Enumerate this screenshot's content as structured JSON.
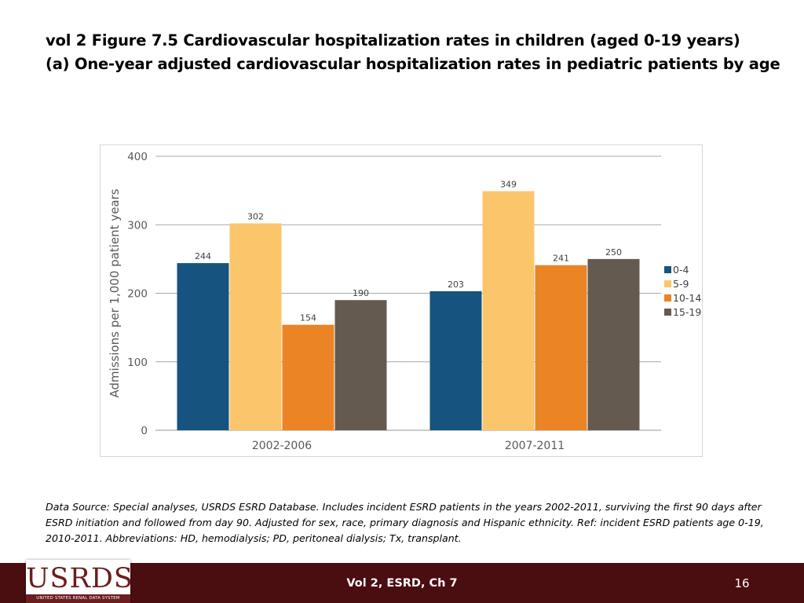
{
  "title": {
    "line1": "vol 2 Figure 7.5 Cardiovascular hospitalization rates in children (aged 0-19 years)",
    "line2": "(a) One-year adjusted cardiovascular hospitalization rates in pediatric patients by age"
  },
  "chart_data": {
    "type": "bar",
    "title": "",
    "xlabel": "",
    "ylabel": "Admissions per 1,000 patient years",
    "ylim": [
      0,
      400
    ],
    "yticks": [
      0,
      100,
      200,
      300,
      400
    ],
    "grid": true,
    "legend_position": "right",
    "categories": [
      "2002-2006",
      "2007-2011"
    ],
    "series": [
      {
        "name": "0-4",
        "color": "#16537e",
        "values": [
          244,
          203
        ]
      },
      {
        "name": "5-9",
        "color": "#fbc56b",
        "values": [
          302,
          349
        ]
      },
      {
        "name": "10-14",
        "color": "#eb8425",
        "values": [
          154,
          241
        ]
      },
      {
        "name": "15-19",
        "color": "#645a50",
        "values": [
          190,
          250
        ]
      }
    ]
  },
  "source": "Data Source: Special analyses, USRDS ESRD Database. Includes incident ESRD patients in the years 2002-2011, surviving the first 90 days after ESRD initiation and followed from day 90. Adjusted for sex, race, primary diagnosis and Hispanic ethnicity. Ref: incident ESRD patients age 0-19, 2010-2011. Abbreviations: HD, hemodialysis; PD, peritoneal dialysis; Tx, transplant.",
  "footer": {
    "logo_text": "USRDS",
    "logo_subtitle": "UNITED STATES RENAL DATA SYSTEM",
    "center": "Vol 2, ESRD, Ch 7",
    "page": "16"
  },
  "colors": {
    "footer_bg": "#4a0d10",
    "logo": "#6b1d1f"
  }
}
